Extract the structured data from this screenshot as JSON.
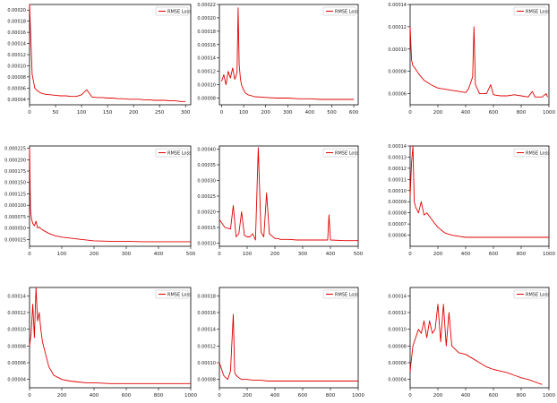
{
  "colors": {
    "series": "#e00000",
    "axis": "#000000",
    "background": "#ffffff"
  },
  "chart_data": [
    {
      "type": "line",
      "legend": [
        "RMSE Loss"
      ],
      "legend_position": "top-right",
      "grid": false,
      "xticks": [
        "0",
        "50",
        "100",
        "150",
        "200",
        "250",
        "300"
      ],
      "yticks": [
        "0.00004",
        "0.00006",
        "0.00008",
        "0.00010",
        "0.00012",
        "0.00014",
        "0.00016",
        "0.00018",
        "0.00020"
      ],
      "xlim": [
        0,
        310
      ],
      "ylim": [
        3e-05,
        0.00021
      ],
      "x": [
        0,
        5,
        10,
        15,
        20,
        25,
        30,
        40,
        50,
        60,
        70,
        80,
        90,
        100,
        110,
        120,
        130,
        140,
        150,
        160,
        170,
        180,
        190,
        200,
        210,
        220,
        230,
        240,
        250,
        260,
        270,
        280,
        290,
        300
      ],
      "y": [
        0.00021,
        8.5e-05,
        6e-05,
        5.5e-05,
        5.2e-05,
        5e-05,
        4.9e-05,
        4.8e-05,
        4.7e-05,
        4.6e-05,
        4.6e-05,
        4.5e-05,
        4.5e-05,
        4.8e-05,
        5.7e-05,
        4.4e-05,
        4.3e-05,
        4.3e-05,
        4.2e-05,
        4.2e-05,
        4.1e-05,
        4.1e-05,
        4e-05,
        4e-05,
        4e-05,
        3.9e-05,
        3.9e-05,
        3.8e-05,
        3.8e-05,
        3.8e-05,
        3.7e-05,
        3.7e-05,
        3.6e-05,
        3.6e-05
      ]
    },
    {
      "type": "line",
      "legend": [
        "RMSE Loss"
      ],
      "legend_position": "top-right",
      "grid": false,
      "xticks": [
        "0",
        "100",
        "200",
        "300",
        "400",
        "500",
        "600"
      ],
      "yticks": [
        "0.00008",
        "0.00010",
        "0.00012",
        "0.00014",
        "0.00016",
        "0.00018",
        "0.00020",
        "0.00022"
      ],
      "xlim": [
        -10,
        620
      ],
      "ylim": [
        7e-05,
        0.00022
      ],
      "x": [
        0,
        10,
        20,
        30,
        40,
        50,
        60,
        70,
        75,
        80,
        85,
        90,
        100,
        110,
        120,
        150,
        200,
        250,
        300,
        350,
        400,
        450,
        500,
        550,
        600
      ],
      "y": [
        0.000105,
        0.000115,
        0.0001,
        0.00012,
        0.00011,
        0.000125,
        0.000108,
        0.000118,
        0.000215,
        0.00013,
        0.00011,
        0.0001,
        9.2e-05,
        8.7e-05,
        8.5e-05,
        8.2e-05,
        8.1e-05,
        8e-05,
        8e-05,
        7.9e-05,
        7.9e-05,
        7.8e-05,
        7.8e-05,
        7.8e-05,
        7.8e-05
      ]
    },
    {
      "type": "line",
      "legend": [
        "RMSE Loss"
      ],
      "legend_position": "top-right",
      "grid": false,
      "xticks": [
        "0",
        "200",
        "400",
        "600",
        "800",
        "1000"
      ],
      "yticks": [
        "0.00006",
        "0.00008",
        "0.00010",
        "0.00012",
        "0.00014"
      ],
      "xlim": [
        0,
        1000
      ],
      "ylim": [
        5e-05,
        0.00014
      ],
      "x": [
        0,
        10,
        20,
        40,
        60,
        80,
        100,
        150,
        200,
        250,
        300,
        350,
        400,
        420,
        450,
        460,
        470,
        500,
        550,
        580,
        600,
        650,
        700,
        750,
        800,
        850,
        880,
        900,
        950,
        980,
        990
      ],
      "y": [
        0.00012,
        9e-05,
        8.5e-05,
        8.2e-05,
        7.8e-05,
        7.5e-05,
        7.2e-05,
        6.8e-05,
        6.5e-05,
        6.4e-05,
        6.3e-05,
        6.2e-05,
        6.1e-05,
        6.4e-05,
        7.5e-05,
        0.00012,
        6.8e-05,
        6e-05,
        6e-05,
        6.8e-05,
        5.9e-05,
        5.8e-05,
        5.8e-05,
        5.9e-05,
        5.8e-05,
        5.7e-05,
        6.2e-05,
        5.7e-05,
        5.7e-05,
        6e-05,
        5.7e-05
      ]
    },
    {
      "type": "line",
      "legend": [
        "RMSE Loss"
      ],
      "legend_position": "top-right",
      "grid": false,
      "xticks": [
        "0",
        "100",
        "200",
        "300",
        "400",
        "500"
      ],
      "yticks": [
        "0.000025",
        "0.000050",
        "0.000075",
        "0.000100",
        "0.000125",
        "0.000150",
        "0.000175",
        "0.000200",
        "0.000225"
      ],
      "xlim": [
        0,
        500
      ],
      "ylim": [
        1e-05,
        0.00023
      ],
      "x": [
        0,
        3,
        6,
        10,
        15,
        20,
        25,
        30,
        40,
        50,
        60,
        80,
        100,
        125,
        150,
        175,
        200,
        250,
        300,
        350,
        400,
        450,
        500
      ],
      "y": [
        0.000225,
        9e-05,
        7e-05,
        6e-05,
        5.5e-05,
        6.5e-05,
        5e-05,
        5.2e-05,
        4.6e-05,
        4.2e-05,
        3.8e-05,
        3.3e-05,
        3e-05,
        2.8e-05,
        2.6e-05,
        2.4e-05,
        2.2e-05,
        2.1e-05,
        2.1e-05,
        2e-05,
        2e-05,
        2e-05,
        2e-05
      ]
    },
    {
      "type": "line",
      "legend": [
        "RMSE Loss"
      ],
      "legend_position": "top-right",
      "grid": false,
      "xticks": [
        "0",
        "100",
        "200",
        "300",
        "400",
        "500"
      ],
      "yticks": [
        "0.00010",
        "0.00015",
        "0.00020",
        "0.00025",
        "0.00030",
        "0.00035",
        "0.00040"
      ],
      "xlim": [
        0,
        500
      ],
      "ylim": [
        9e-05,
        0.00041
      ],
      "x": [
        0,
        20,
        40,
        50,
        60,
        70,
        80,
        90,
        100,
        110,
        120,
        130,
        140,
        150,
        160,
        170,
        180,
        200,
        210,
        220,
        250,
        280,
        300,
        350,
        390,
        395,
        400,
        450,
        500
      ],
      "y": [
        0.000175,
        0.00015,
        0.000145,
        0.00022,
        0.00012,
        0.00013,
        0.0002,
        0.000125,
        0.00012,
        0.00012,
        0.00013,
        0.00011,
        0.000405,
        0.000135,
        0.00012,
        0.00026,
        0.00013,
        0.000115,
        0.000115,
        0.000112,
        0.000112,
        0.00011,
        0.00011,
        0.00011,
        0.00011,
        0.00019,
        0.00011,
        0.000108,
        0.000108
      ]
    },
    {
      "type": "line",
      "legend": [
        "RMSE Loss"
      ],
      "legend_position": "top-right",
      "grid": false,
      "xticks": [
        "0",
        "200",
        "400",
        "600",
        "800",
        "1000"
      ],
      "yticks": [
        "0.00006",
        "0.00007",
        "0.00008",
        "0.00009",
        "0.00010",
        "0.00011",
        "0.00012",
        "0.00013",
        "0.00014"
      ],
      "xlim": [
        0,
        1000
      ],
      "ylim": [
        5e-05,
        0.00014
      ],
      "x": [
        0,
        10,
        20,
        30,
        40,
        60,
        80,
        100,
        120,
        150,
        180,
        200,
        250,
        300,
        350,
        400,
        500,
        600,
        700,
        800,
        900,
        1000
      ],
      "y": [
        9.5e-05,
        0.000125,
        0.00014,
        9e-05,
        8.5e-05,
        8e-05,
        9e-05,
        7.8e-05,
        8e-05,
        7.5e-05,
        7e-05,
        6.7e-05,
        6.2e-05,
        6e-05,
        5.9e-05,
        5.8e-05,
        5.8e-05,
        5.8e-05,
        5.8e-05,
        5.8e-05,
        5.8e-05,
        5.8e-05
      ]
    },
    {
      "type": "line",
      "legend": [
        "RMSE Loss"
      ],
      "legend_position": "top-right",
      "grid": false,
      "xticks": [
        "0",
        "200",
        "400",
        "600",
        "800",
        "1000"
      ],
      "yticks": [
        "0.00004",
        "0.00006",
        "0.00008",
        "0.00010",
        "0.00012",
        "0.00014"
      ],
      "xlim": [
        0,
        1000
      ],
      "ylim": [
        3e-05,
        0.00015
      ],
      "x": [
        0,
        10,
        20,
        30,
        40,
        50,
        60,
        70,
        80,
        100,
        120,
        150,
        180,
        200,
        250,
        300,
        350,
        400,
        500,
        600,
        700,
        800,
        900,
        1000
      ],
      "y": [
        8e-05,
        9.5e-05,
        0.00013,
        9e-05,
        0.00015,
        0.00011,
        0.00012,
        0.0001,
        8.5e-05,
        7e-05,
        5.5e-05,
        4.5e-05,
        4.2e-05,
        4e-05,
        3.8e-05,
        3.7e-05,
        3.6e-05,
        3.6e-05,
        3.5e-05,
        3.5e-05,
        3.5e-05,
        3.5e-05,
        3.5e-05,
        3.5e-05
      ]
    },
    {
      "type": "line",
      "legend": [
        "RMSE Loss"
      ],
      "legend_position": "top-right",
      "grid": false,
      "xticks": [
        "0",
        "200",
        "400",
        "600",
        "800",
        "1000"
      ],
      "yticks": [
        "0.00008",
        "0.00010",
        "0.00012",
        "0.00014",
        "0.00016",
        "0.00018"
      ],
      "xlim": [
        0,
        1000
      ],
      "ylim": [
        7e-05,
        0.00019
      ],
      "x": [
        0,
        10,
        20,
        30,
        40,
        60,
        80,
        100,
        110,
        120,
        140,
        160,
        180,
        200,
        250,
        300,
        350,
        400,
        500,
        600,
        700,
        800,
        900,
        1000
      ],
      "y": [
        0.0001,
        9.5e-05,
        9e-05,
        8.5e-05,
        8.3e-05,
        8e-05,
        9e-05,
        0.000158,
        8.8e-05,
        8.5e-05,
        8.2e-05,
        8e-05,
        8e-05,
        8e-05,
        7.9e-05,
        7.9e-05,
        7.8e-05,
        7.8e-05,
        7.8e-05,
        7.8e-05,
        7.8e-05,
        7.8e-05,
        7.8e-05,
        7.8e-05
      ]
    },
    {
      "type": "line",
      "legend": [
        "RMSE Loss"
      ],
      "legend_position": "top-right",
      "grid": false,
      "xticks": [
        "0",
        "200",
        "400",
        "600",
        "800",
        "1000"
      ],
      "yticks": [
        "0.00004",
        "0.00006",
        "0.00008",
        "0.00010",
        "0.00012",
        "0.00014"
      ],
      "xlim": [
        0,
        1000
      ],
      "ylim": [
        3e-05,
        0.00015
      ],
      "x": [
        0,
        20,
        40,
        60,
        80,
        100,
        120,
        140,
        160,
        180,
        200,
        220,
        240,
        260,
        280,
        300,
        350,
        400,
        450,
        500,
        550,
        600,
        650,
        700,
        750,
        800,
        850,
        900,
        950
      ],
      "y": [
        5e-05,
        8e-05,
        9e-05,
        0.0001,
        9.5e-05,
        0.00011,
        9e-05,
        0.00011,
        9.5e-05,
        0.0001,
        0.00013,
        8.5e-05,
        0.00013,
        8e-05,
        0.00012,
        8e-05,
        7.2e-05,
        7e-05,
        6.5e-05,
        6e-05,
        5.5e-05,
        5.2e-05,
        5e-05,
        4.8e-05,
        4.5e-05,
        4.2e-05,
        4e-05,
        3.7e-05,
        3.4e-05
      ]
    }
  ]
}
